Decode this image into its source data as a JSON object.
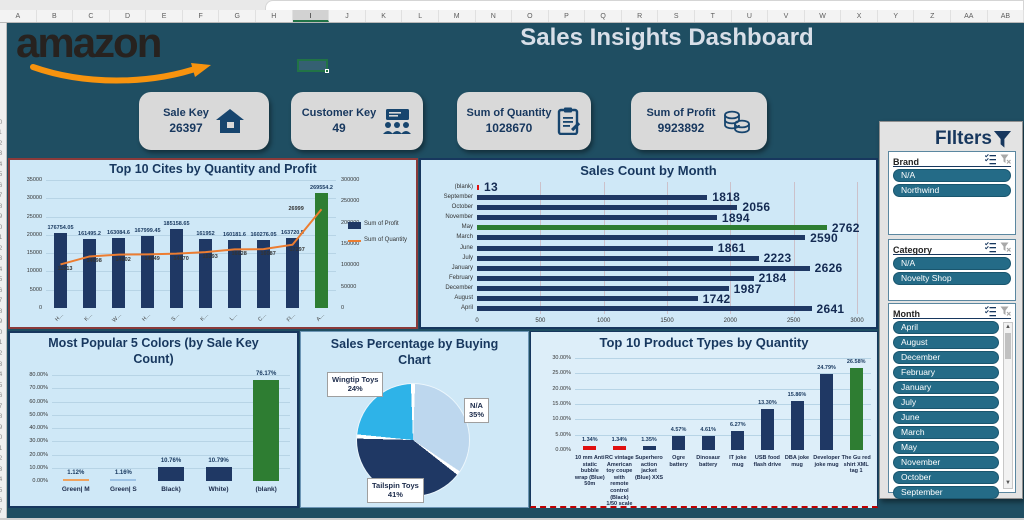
{
  "excel": {
    "columns": [
      "A",
      "B",
      "C",
      "D",
      "E",
      "F",
      "G",
      "H",
      "I",
      "J",
      "K",
      "L",
      "M",
      "N",
      "O",
      "P",
      "Q",
      "R",
      "S",
      "T",
      "U",
      "V",
      "W",
      "X",
      "Y",
      "Z",
      "AA",
      "AB"
    ],
    "active_column": "I",
    "visible_rows": 47
  },
  "banner": {
    "logo_text": "amazon",
    "title": "Sales Insights Dashboard"
  },
  "kpis": [
    {
      "label": "Sale Key",
      "value": "26397",
      "icon": "house-icon"
    },
    {
      "label": "Customer Key",
      "value": "49",
      "icon": "audience-icon"
    },
    {
      "label": "Sum of Quantity",
      "value": "1028670",
      "icon": "clipboard-icon"
    },
    {
      "label": "Sum of Profit",
      "value": "9923892",
      "icon": "coins-icon"
    }
  ],
  "filters": {
    "title": "FIlters",
    "slicers": [
      {
        "name": "Brand",
        "items": [
          "N/A",
          "Northwind"
        ],
        "scrollbar": false
      },
      {
        "name": "Category",
        "items": [
          "N/A",
          "Novelty Shop"
        ],
        "scrollbar": false
      },
      {
        "name": "Month",
        "items": [
          "April",
          "August",
          "December",
          "February",
          "January",
          "July",
          "June",
          "March",
          "May",
          "November",
          "October",
          "September"
        ],
        "scrollbar": true
      }
    ]
  },
  "colors": {
    "banner": "#1f4e62",
    "chart_bg": "#cfe8f7",
    "navy": "#1f3864",
    "green": "#2e7d32",
    "orange": "#ed7d31",
    "red": "#e01010",
    "pale_blue": "#bdd7ee",
    "bright_blue": "#2eb3e8",
    "slicer_teal": "#246b87"
  },
  "chart_data": [
    {
      "type": "combo",
      "title": "Top 10 Cites by Quantity and Profit",
      "categories": [
        "H…",
        "K…",
        "W…",
        "H…",
        "S…",
        "K…",
        "L…",
        "C…",
        "Fl…",
        "A…"
      ],
      "series": [
        {
          "name": "Sum of Profit",
          "kind": "bar",
          "values": [
            176754.05,
            161495.2,
            163084.6,
            167999.45,
            185158.65,
            161952,
            160181.6,
            160276.05,
            163720.5,
            269554.2
          ]
        },
        {
          "name": "Sum of Quantity",
          "kind": "line",
          "values": [
            11913,
            14098,
            14602,
            14649,
            14870,
            15293,
            16028,
            16087,
            17297,
            26999
          ]
        }
      ],
      "left_axis": {
        "min": 0,
        "max": 35000,
        "step": 5000
      },
      "right_axis": {
        "min": 0,
        "max": 300000,
        "step": 50000
      },
      "highlight_index": 9,
      "legend_position": "right"
    },
    {
      "type": "hbar",
      "title": "Sales Count by Month",
      "categories": [
        "(blank)",
        "September",
        "October",
        "November",
        "May",
        "March",
        "June",
        "July",
        "January",
        "February",
        "December",
        "August",
        "April"
      ],
      "values": [
        13,
        1818,
        2056,
        1894,
        2762,
        2590,
        1861,
        2223,
        2626,
        2184,
        1987,
        1742,
        2641
      ],
      "bar_colors": [
        "#e01010",
        "#1f3864",
        "#1f3864",
        "#1f3864",
        "#2e7d32",
        "#1f3864",
        "#1f3864",
        "#1f3864",
        "#1f3864",
        "#1f3864",
        "#1f3864",
        "#1f3864",
        "#1f3864"
      ],
      "xlim": [
        0,
        3000
      ],
      "xstep": 500
    },
    {
      "type": "bar",
      "title": "Most Popular 5 Colors (by Sale Key Count)",
      "categories": [
        "Green| M",
        "Green| S",
        "Black)",
        "White)",
        "(blank)"
      ],
      "values": [
        1.12,
        1.16,
        10.76,
        10.79,
        76.17
      ],
      "labels": [
        "1.12%",
        "1.16%",
        "10.76%",
        "10.79%",
        "76.17%"
      ],
      "bar_colors": [
        "#f0a35e",
        "#9dc3e6",
        "#1f3864",
        "#1f3864",
        "#2e7d32"
      ],
      "ylim": [
        0,
        80
      ],
      "ystep": 10
    },
    {
      "type": "pie",
      "title": "Sales Percentage by Buying Chart",
      "slices": [
        {
          "label": "N/A",
          "pct": 35,
          "color": "#bdd7ee"
        },
        {
          "label": "Tailspin Toys",
          "pct": 41,
          "color": "#1f3864"
        },
        {
          "label": "Wingtip Toys",
          "pct": 24,
          "color": "#2eb3e8"
        }
      ]
    },
    {
      "type": "bar",
      "title": "Top 10 Product Types by Quantity",
      "categories": [
        "10 mm Anti static bubble wrap (Blue) 50m",
        "RC vintage American toy coupe with remote control (Black) 1/50 scale",
        "Superhero action jacket (Blue) XXS",
        "Ogre battery",
        "Dinosaur battery",
        "IT joke mug",
        "USB food flash drive",
        "DBA joke mug",
        "Developer joke mug",
        "The Gu red shirt XML tag 1"
      ],
      "values": [
        1.34,
        1.34,
        1.35,
        4.57,
        4.61,
        6.27,
        13.3,
        15.86,
        24.79,
        26.58
      ],
      "labels": [
        "1.34%",
        "1.34%",
        "1.35%",
        "4.57%",
        "4.61%",
        "6.27%",
        "13.30%",
        "15.86%",
        "24.79%",
        "26.58%"
      ],
      "bar_colors": [
        "#e01010",
        "#e01010",
        "#1f3864",
        "#1f3864",
        "#1f3864",
        "#1f3864",
        "#1f3864",
        "#1f3864",
        "#1f3864",
        "#2e7d32"
      ],
      "ylim": [
        0,
        30
      ],
      "ystep": 5
    }
  ]
}
